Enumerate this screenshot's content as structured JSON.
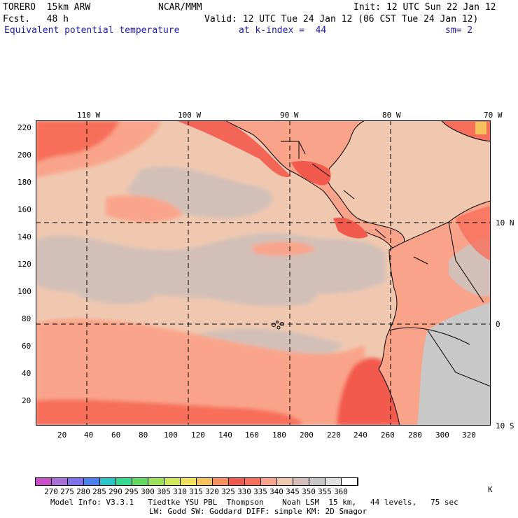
{
  "header": {
    "model": "TORERO  15km ARW",
    "org": "NCAR/MMM",
    "init": "Init: 12 UTC Sun 22 Jan 12",
    "fcst": "Fcst.   48 h",
    "valid": "Valid: 12 UTC Tue 24 Jan 12 (06 CST Tue 24 Jan 12)",
    "field": "Equivalent potential temperature",
    "level": "at k-index =  44",
    "smooth": "sm= 2"
  },
  "map": {
    "lon_labels": [
      "110 W",
      "100 W",
      "90 W",
      "80 W",
      "70 W"
    ],
    "lat_labels": [
      "10 N",
      "0",
      "10 S"
    ],
    "y_ticks": [
      "220",
      "200",
      "180",
      "160",
      "140",
      "120",
      "100",
      "80",
      "60",
      "40",
      "20"
    ],
    "x_ticks": [
      "20",
      "40",
      "60",
      "80",
      "100",
      "120",
      "140",
      "160",
      "180",
      "200",
      "220",
      "240",
      "260",
      "280",
      "300",
      "320"
    ]
  },
  "colorbar": {
    "levels": [
      "270",
      "275",
      "280",
      "285",
      "290",
      "295",
      "300",
      "305",
      "310",
      "315",
      "320",
      "325",
      "330",
      "335",
      "340",
      "345",
      "350",
      "355",
      "360"
    ],
    "unit": "K",
    "colors": [
      "#c84fc8",
      "#a66fd9",
      "#7f70ea",
      "#4b7ff0",
      "#27c5c5",
      "#32d98f",
      "#5fdb5f",
      "#9be35a",
      "#cfe85a",
      "#f2e05a",
      "#f6c25c",
      "#f3905e",
      "#f25a4e",
      "#f76e5a",
      "#f9a48a",
      "#f0c8b0",
      "#d2c0b8",
      "#c8c8c8",
      "#e0e0e0",
      "#ffffff"
    ]
  },
  "footer": {
    "line1": "Model Info: V3.3.1   Tiedtke YSU PBL  Thompson    Noah LSM  15 km,   44 levels,   75 sec",
    "line2": "LW: Godd SW: Goddard DIFF: simple KM: 2D Smagor"
  }
}
